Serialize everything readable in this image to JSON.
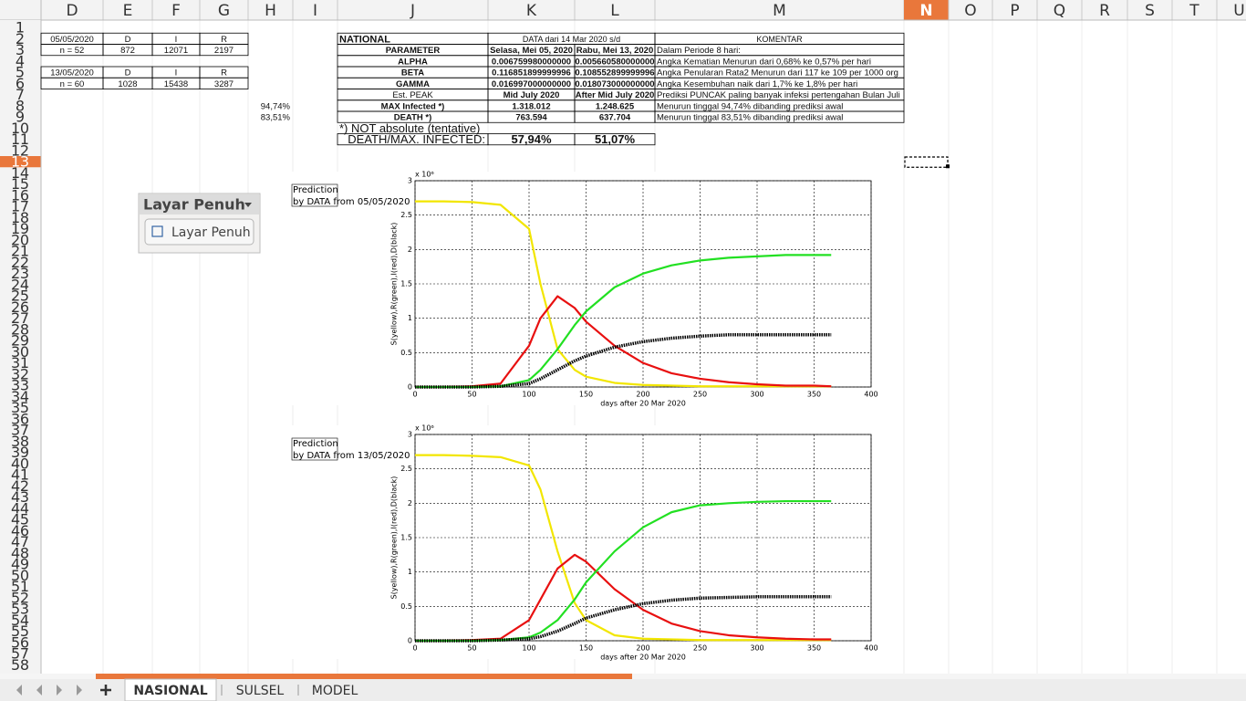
{
  "column_headers": [
    "D",
    "E",
    "F",
    "G",
    "H",
    "I",
    "J",
    "K",
    "L",
    "M",
    "N",
    "O",
    "P",
    "Q",
    "R",
    "S",
    "T",
    "U"
  ],
  "row_headers": [
    1,
    2,
    3,
    4,
    5,
    6,
    7,
    8,
    9,
    10,
    11,
    12,
    13,
    14,
    15,
    16,
    17,
    18,
    19,
    20,
    21,
    22,
    23,
    24,
    25,
    26,
    27,
    28,
    29,
    30,
    31,
    32,
    33,
    34,
    35,
    36,
    37,
    38,
    39,
    40,
    41,
    42,
    43,
    44,
    45,
    46,
    47,
    48,
    49,
    50,
    51,
    52,
    53,
    54,
    55,
    56,
    57,
    58
  ],
  "cells": {
    "D2": "05/05/2020",
    "E2": "D",
    "F2": "I",
    "G2": "R",
    "D3": "n = 52",
    "E3": "872",
    "F3": "12071",
    "G3": "2197",
    "D5": "13/05/2020",
    "E5": "D",
    "F5": "I",
    "G5": "R",
    "D6": "n = 60",
    "E6": "1028",
    "F6": "15438",
    "G6": "3287",
    "H8": "94,74%",
    "H9": "83,51%",
    "J2": "NATIONAL",
    "K2": "DATA dari 14 Mar 2020 s/d",
    "M2": "KOMENTAR",
    "J3": "PARAMETER",
    "K3": "Selasa, Mei 05, 2020",
    "L3": "Rabu, Mei 13, 2020",
    "M3": "Dalam Periode 8 hari:",
    "J4": "ALPHA",
    "K4": "0.006759980000000",
    "L4": "0.005660580000000",
    "M4": "Angka Kematian Menurun dari 0,68% ke 0,57% per hari",
    "J5": "BETA",
    "K5": "0.116851899999996",
    "L5": "0.108552899999996",
    "M5": "Angka Penularan Rata2 Menurun dari 117 ke 109 per 1000 org",
    "J6": "GAMMA",
    "K6": "0.016997000000000",
    "L6": "0.018073000000000",
    "M6": "Angka Kesembuhan naik dari 1,7% ke 1,8% per hari",
    "J7": "Est. PEAK",
    "K7": "Mid July 2020",
    "L7": "After Mid July 2020",
    "M7": "Prediksi PUNCAK paling banyak infeksi pertengahan Bulan Juli",
    "J8": "MAX Infected *)",
    "K8": "1.318.012",
    "L8": "1.248.625",
    "M8": "Menurun tinggal 94,74% dibanding prediksi awal",
    "J9": "DEATH *)",
    "K9": "763.594",
    "L9": "637.704",
    "M9": "Menurun tinggal 83,51% dibanding prediksi awal",
    "J10": "*) NOT absolute (tentative)",
    "J11": "DEATH/MAX. INFECTED:",
    "K11": "57,94%",
    "L11": "51,07%"
  },
  "popup": {
    "title": "Layar Penuh",
    "button": "Layar Penuh"
  },
  "sheet_tabs": [
    "NASIONAL",
    "SULSEL",
    "MODEL"
  ],
  "chart_data": [
    {
      "type": "line",
      "title": "Prediction",
      "subtitle": "by DATA from 05/05/2020",
      "offset_label": "x 10⁶",
      "xlabel": "days after 20 Mar 2020",
      "ylabel": "S(yellow),R(green),I(red),D(black)",
      "xlim": [
        0,
        400
      ],
      "xticks": [
        0,
        50,
        100,
        150,
        200,
        250,
        300,
        350,
        400
      ],
      "ylim": [
        0,
        3
      ],
      "yticks": [
        0,
        0.5,
        1,
        1.5,
        2,
        2.5,
        3
      ],
      "grid": true,
      "x": [
        0,
        25,
        50,
        75,
        100,
        110,
        125,
        140,
        150,
        175,
        200,
        225,
        250,
        275,
        300,
        325,
        350,
        365
      ],
      "series": [
        {
          "color": "#f2e600",
          "values": [
            2.7,
            2.7,
            2.69,
            2.65,
            2.3,
            1.5,
            0.55,
            0.25,
            0.15,
            0.06,
            0.03,
            0.02,
            0.01,
            0.01,
            0.01,
            0.01,
            0.01,
            0.01
          ]
        },
        {
          "color": "#e81010",
          "values": [
            0,
            0,
            0.01,
            0.05,
            0.6,
            1.0,
            1.32,
            1.15,
            0.95,
            0.6,
            0.35,
            0.2,
            0.12,
            0.07,
            0.04,
            0.02,
            0.02,
            0.01
          ]
        },
        {
          "color": "#22e022",
          "values": [
            0,
            0,
            0,
            0.01,
            0.1,
            0.25,
            0.55,
            0.9,
            1.1,
            1.45,
            1.65,
            1.77,
            1.84,
            1.88,
            1.9,
            1.92,
            1.92,
            1.92
          ]
        },
        {
          "color": "#000000",
          "values": [
            0,
            0,
            0,
            0.01,
            0.05,
            0.12,
            0.25,
            0.38,
            0.45,
            0.58,
            0.66,
            0.71,
            0.74,
            0.76,
            0.76,
            0.76,
            0.76,
            0.76
          ]
        }
      ]
    },
    {
      "type": "line",
      "title": "Prediction",
      "subtitle": "by DATA from 13/05/2020",
      "offset_label": "x 10⁶",
      "xlabel": "days after 20 Mar 2020",
      "ylabel": "S(yellow),R(green),I(red),D(black)",
      "xlim": [
        0,
        400
      ],
      "xticks": [
        0,
        50,
        100,
        150,
        200,
        250,
        300,
        350,
        400
      ],
      "ylim": [
        0,
        3
      ],
      "yticks": [
        0,
        0.5,
        1,
        1.5,
        2,
        2.5,
        3
      ],
      "grid": true,
      "x": [
        0,
        25,
        50,
        75,
        100,
        110,
        125,
        140,
        150,
        175,
        200,
        225,
        250,
        275,
        300,
        325,
        350,
        365
      ],
      "series": [
        {
          "color": "#f2e600",
          "values": [
            2.7,
            2.7,
            2.69,
            2.67,
            2.55,
            2.2,
            1.3,
            0.55,
            0.3,
            0.08,
            0.03,
            0.02,
            0.01,
            0.01,
            0.01,
            0.01,
            0.01,
            0.01
          ]
        },
        {
          "color": "#e81010",
          "values": [
            0,
            0,
            0.01,
            0.03,
            0.3,
            0.6,
            1.05,
            1.25,
            1.15,
            0.75,
            0.45,
            0.25,
            0.14,
            0.08,
            0.05,
            0.03,
            0.02,
            0.02
          ]
        },
        {
          "color": "#22e022",
          "values": [
            0,
            0,
            0,
            0.01,
            0.05,
            0.12,
            0.3,
            0.6,
            0.85,
            1.3,
            1.65,
            1.87,
            1.97,
            2.0,
            2.02,
            2.03,
            2.03,
            2.03
          ]
        },
        {
          "color": "#000000",
          "values": [
            0,
            0,
            0,
            0.01,
            0.03,
            0.06,
            0.14,
            0.25,
            0.33,
            0.45,
            0.54,
            0.59,
            0.62,
            0.63,
            0.64,
            0.64,
            0.64,
            0.64
          ]
        }
      ]
    }
  ]
}
